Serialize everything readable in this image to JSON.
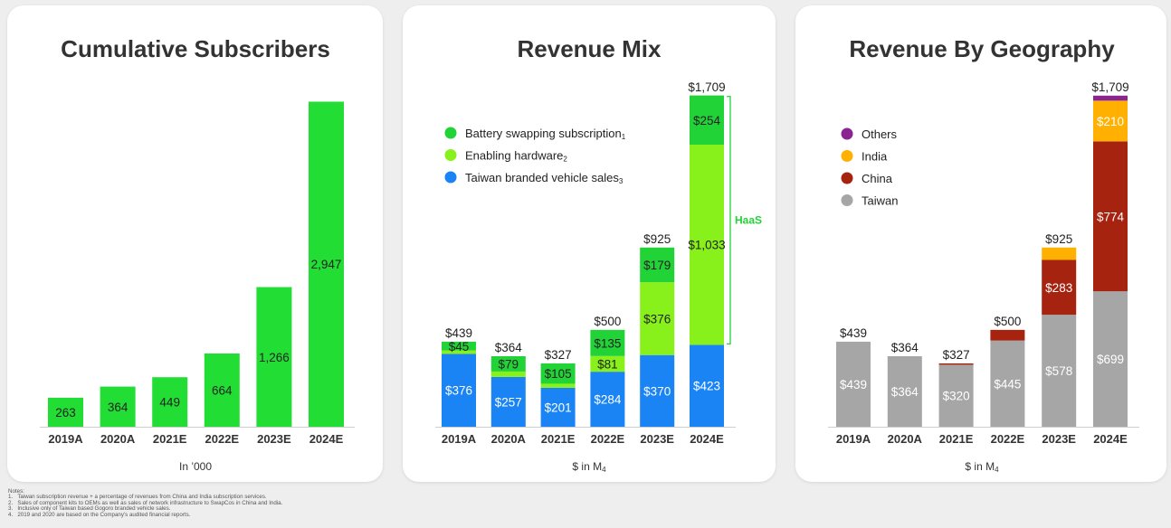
{
  "chart_data": [
    {
      "type": "bar",
      "title": "Cumulative Subscribers",
      "categories": [
        "2019A",
        "2020A",
        "2021E",
        "2022E",
        "2023E",
        "2024E"
      ],
      "series": [
        {
          "name": "",
          "color": "#22dd33",
          "values": [
            263,
            364,
            449,
            664,
            1266,
            2947
          ]
        }
      ],
      "value_labels": [
        "263",
        "364",
        "449",
        "664",
        "1,266",
        "2,947"
      ],
      "xlabel": "In ’000",
      "ylim": [
        0,
        3000
      ],
      "grid": false,
      "legend": "none"
    },
    {
      "type": "bar",
      "stacked": true,
      "title": "Revenue Mix",
      "categories": [
        "2019A",
        "2020A",
        "2021E",
        "2022E",
        "2023E",
        "2024E"
      ],
      "series": [
        {
          "name": "Taiwan branded vehicle sales",
          "sup": "3",
          "color": "#1a84f5",
          "values": [
            376,
            257,
            201,
            284,
            370,
            423
          ],
          "labels": [
            "$376",
            "$257",
            "$201",
            "$284",
            "$370",
            "$423"
          ]
        },
        {
          "name": "Enabling hardware",
          "sup": "2",
          "color": "#88f01a",
          "values": [
            18,
            28,
            21,
            81,
            376,
            1033
          ],
          "labels": [
            "",
            "",
            "",
            "$81",
            "$376",
            "$1,033"
          ]
        },
        {
          "name": "Battery swapping subscription",
          "sup": "1",
          "color": "#22d338",
          "values": [
            45,
            79,
            105,
            135,
            179,
            254
          ],
          "labels": [
            "$45",
            "$79",
            "$105",
            "$135",
            "$179",
            "$254"
          ]
        }
      ],
      "totals": [
        "$439",
        "$364",
        "$327",
        "$500",
        "$925",
        "$1,709"
      ],
      "total_values": [
        439,
        364,
        327,
        500,
        925,
        1709
      ],
      "annotation": "HaaS",
      "xlabel": "$ in M",
      "xlabel_sub": "4",
      "ylim": [
        0,
        1750
      ],
      "grid": false,
      "legend": "top-left"
    },
    {
      "type": "bar",
      "stacked": true,
      "title": "Revenue By Geography",
      "categories": [
        "2019A",
        "2020A",
        "2021E",
        "2022E",
        "2023E",
        "2024E"
      ],
      "series": [
        {
          "name": "Taiwan",
          "color": "#a6a6a6",
          "values": [
            439,
            364,
            320,
            445,
            578,
            699
          ],
          "labels": [
            "$439",
            "$364",
            "$320",
            "$445",
            "$578",
            "$699"
          ]
        },
        {
          "name": "China",
          "color": "#a62310",
          "values": [
            0,
            0,
            7,
            55,
            283,
            774
          ],
          "labels": [
            "",
            "",
            "",
            "",
            "$283",
            "$774"
          ]
        },
        {
          "name": "India",
          "color": "#ffb000",
          "values": [
            0,
            0,
            0,
            0,
            64,
            210
          ],
          "labels": [
            "",
            "",
            "",
            "",
            "",
            "$210"
          ]
        },
        {
          "name": "Others",
          "color": "#8a2491",
          "values": [
            0,
            0,
            0,
            0,
            0,
            26
          ],
          "labels": [
            "",
            "",
            "",
            "",
            "",
            ""
          ]
        }
      ],
      "totals": [
        "$439",
        "$364",
        "$327",
        "$500",
        "$925",
        "$1,709"
      ],
      "total_values": [
        439,
        364,
        327,
        500,
        925,
        1709
      ],
      "xlabel": "$ in M",
      "xlabel_sub": "4",
      "ylim": [
        0,
        1750
      ],
      "grid": false,
      "legend": "top-left"
    }
  ],
  "notes": {
    "heading": "Notes:",
    "items": [
      "1.   Taiwan subscription revenue + a percentage of revenues from China and India subscription services.",
      "2.   Sales of component kits to OEMs as well as sales of network infrastructure to SwapCos in China and India.",
      "3.   Inclusive only of Taiwan based Gogoro branded vehicle sales.",
      "4.   2019 and 2020 are based on the Company's audited financial reports."
    ]
  }
}
